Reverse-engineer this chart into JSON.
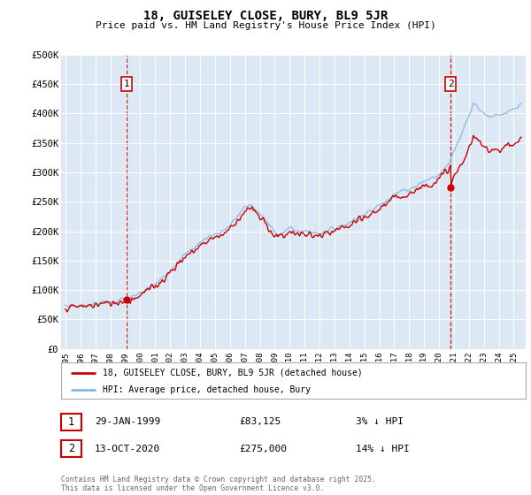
{
  "title": "18, GUISELEY CLOSE, BURY, BL9 5JR",
  "subtitle": "Price paid vs. HM Land Registry's House Price Index (HPI)",
  "background_color": "#dce9f5",
  "plot_bg_color": "#dce9f5",
  "ylim": [
    0,
    500000
  ],
  "yticks": [
    0,
    50000,
    100000,
    150000,
    200000,
    250000,
    300000,
    350000,
    400000,
    450000,
    500000
  ],
  "ytick_labels": [
    "£0",
    "£50K",
    "£100K",
    "£150K",
    "£200K",
    "£250K",
    "£300K",
    "£350K",
    "£400K",
    "£450K",
    "£500K"
  ],
  "legend_label_red": "18, GUISELEY CLOSE, BURY, BL9 5JR (detached house)",
  "legend_label_blue": "HPI: Average price, detached house, Bury",
  "annotation1_label": "1",
  "annotation1_date": "29-JAN-1999",
  "annotation1_price": "£83,125",
  "annotation1_hpi": "3% ↓ HPI",
  "annotation2_label": "2",
  "annotation2_date": "13-OCT-2020",
  "annotation2_price": "£275,000",
  "annotation2_hpi": "14% ↓ HPI",
  "footer": "Contains HM Land Registry data © Crown copyright and database right 2025.\nThis data is licensed under the Open Government Licence v3.0.",
  "line_color_red": "#cc0000",
  "line_color_blue": "#88b8e0",
  "marker_color_red": "#cc0000",
  "vline_color": "#cc0000",
  "xlim_start": 1994.7,
  "xlim_end": 2025.8,
  "xticks": [
    1995,
    1996,
    1997,
    1998,
    1999,
    2000,
    2001,
    2002,
    2003,
    2004,
    2005,
    2006,
    2007,
    2008,
    2009,
    2010,
    2011,
    2012,
    2013,
    2014,
    2015,
    2016,
    2017,
    2018,
    2019,
    2020,
    2021,
    2022,
    2023,
    2024,
    2025
  ]
}
